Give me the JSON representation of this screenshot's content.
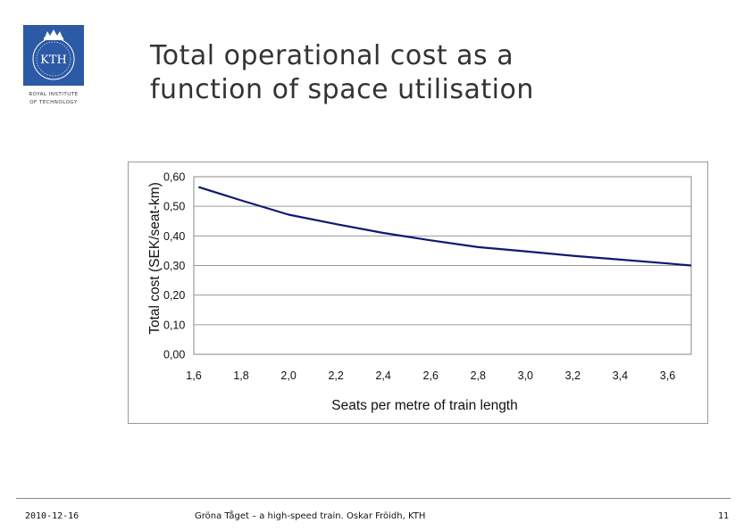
{
  "slide": {
    "title_line1": "Total operational cost as a",
    "title_line2": "function of space utilisation",
    "logo_text": "KTH",
    "logo_institute_line1": "ROYAL INSTITUTE",
    "logo_institute_line2": "OF TECHNOLOGY",
    "brand_color": "#2d5aa6"
  },
  "footer": {
    "date": "2010-12-16",
    "caption": "Gröna Tåget – a high-speed train. Oskar Fröidh, KTH",
    "page": "11"
  },
  "chart_data": {
    "type": "line",
    "title": "",
    "xlabel": "Seats per metre of train length",
    "ylabel": "Total cost (SEK/seat-km)",
    "xlim": [
      1.6,
      3.7
    ],
    "ylim": [
      0.0,
      0.6
    ],
    "xticks": [
      1.6,
      1.8,
      2.0,
      2.2,
      2.4,
      2.6,
      2.8,
      3.0,
      3.2,
      3.4,
      3.6
    ],
    "xtick_labels": [
      "1,6",
      "1,8",
      "2,0",
      "2,2",
      "2,4",
      "2,6",
      "2,8",
      "3,0",
      "3,2",
      "3,4",
      "3,6"
    ],
    "yticks": [
      0.0,
      0.1,
      0.2,
      0.3,
      0.4,
      0.5,
      0.6
    ],
    "ytick_labels": [
      "0,00",
      "0,10",
      "0,20",
      "0,30",
      "0,40",
      "0,50",
      "0,60"
    ],
    "grid": true,
    "legend": "none",
    "series": [
      {
        "name": "Total cost",
        "color": "#0f1a6e",
        "x": [
          1.62,
          1.8,
          2.0,
          2.2,
          2.4,
          2.6,
          2.8,
          3.0,
          3.2,
          3.4,
          3.6,
          3.7
        ],
        "y": [
          0.565,
          0.52,
          0.472,
          0.44,
          0.41,
          0.385,
          0.362,
          0.348,
          0.333,
          0.32,
          0.307,
          0.3
        ]
      }
    ]
  }
}
